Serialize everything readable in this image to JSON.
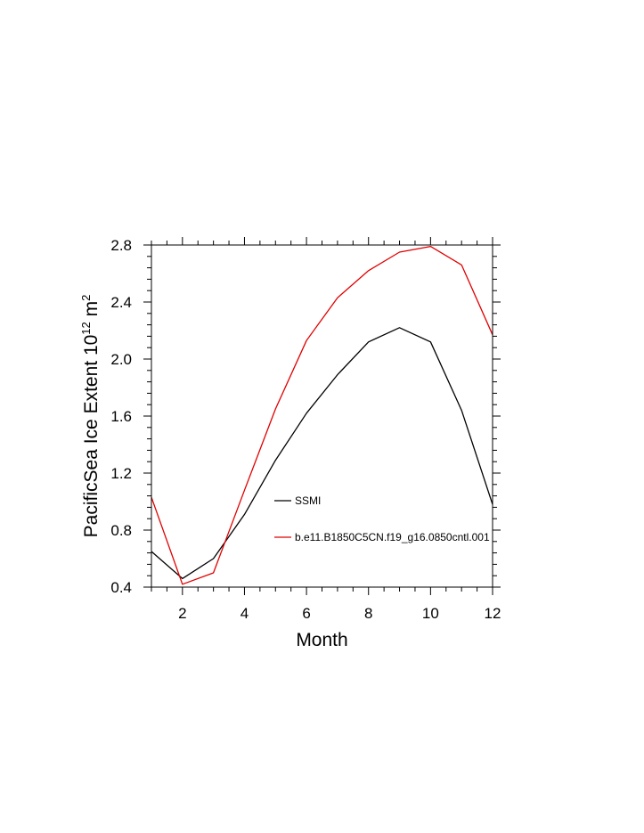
{
  "chart_data": {
    "type": "line",
    "xlabel": "Month",
    "ylabel": {
      "main": "PacificSea Ice Extent 10",
      "exp": "12",
      "unit": " m",
      "unit_exp": "2"
    },
    "xlim": [
      1,
      12
    ],
    "ylim": [
      0.4,
      2.8
    ],
    "x_ticks": [
      2,
      4,
      6,
      8,
      10,
      12
    ],
    "y_ticks": [
      0.4,
      0.8,
      1.2,
      1.6,
      2.0,
      2.4,
      2.8
    ],
    "x_tick_labels": [
      "2",
      "4",
      "6",
      "8",
      "10",
      "12"
    ],
    "y_tick_labels": [
      "0.4",
      "0.8",
      "1.2",
      "1.6",
      "2.0",
      "2.4",
      "2.8"
    ],
    "x": [
      1,
      2,
      3,
      4,
      5,
      6,
      7,
      8,
      9,
      10,
      11,
      12
    ],
    "series": [
      {
        "name": "SSMI",
        "color": "#000000",
        "values": [
          0.65,
          0.46,
          0.6,
          0.91,
          1.29,
          1.62,
          1.89,
          2.12,
          2.22,
          2.12,
          1.64,
          0.98
        ]
      },
      {
        "name": "b.e11.B1850C5CN.f19_g16.0850cntl.001",
        "color": "#e00000",
        "values": [
          1.03,
          0.42,
          0.5,
          1.08,
          1.65,
          2.13,
          2.43,
          2.62,
          2.75,
          2.79,
          2.66,
          2.17
        ]
      }
    ],
    "legend_position": "lower-center-inside",
    "grid": false
  }
}
